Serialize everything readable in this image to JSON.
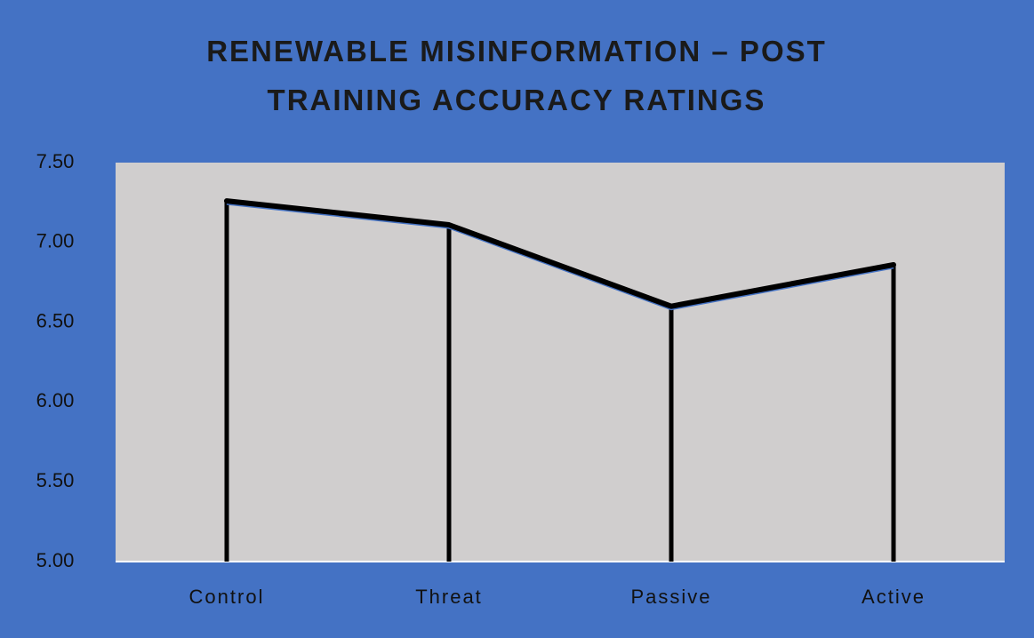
{
  "chart_data": {
    "type": "line",
    "title": "RENEWABLE MISINFORMATION – POST TRAINING ACCURACY RATINGS",
    "categories": [
      "Control",
      "Threat",
      "Passive",
      "Active"
    ],
    "series": [
      {
        "color": "#000000",
        "values": [
          7.26,
          7.11,
          6.6,
          6.86
        ]
      }
    ],
    "drop_lines": true,
    "ylim": [
      5,
      7.5
    ],
    "yticks": [
      {
        "value": 5,
        "label": "5.00"
      },
      {
        "value": 5.5,
        "label": "5.50"
      },
      {
        "value": 6,
        "label": "6.00"
      },
      {
        "value": 6.5,
        "label": "6.50"
      },
      {
        "value": 7,
        "label": "7.00"
      },
      {
        "value": 7.5,
        "label": "7.50"
      }
    ]
  }
}
